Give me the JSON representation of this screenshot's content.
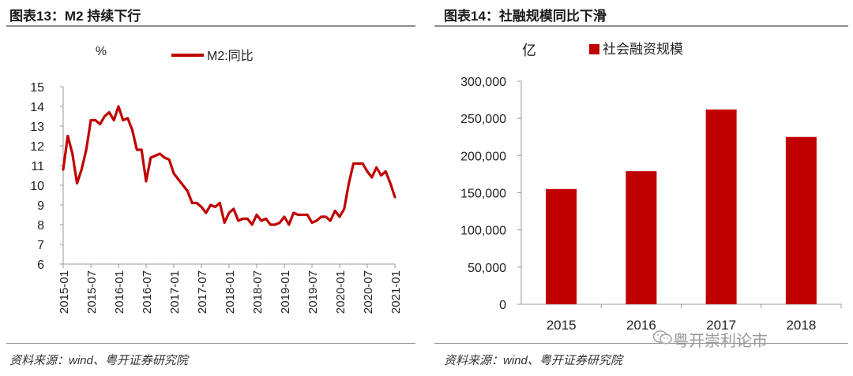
{
  "left": {
    "title": "图表13：M2 持续下行",
    "source": "资料来源：wind、粤开证券研究院"
  },
  "right": {
    "title": "图表14：社融规模同比下滑",
    "source": "资料来源：wind、粤开证券研究院"
  },
  "watermark": {
    "text": "粤开崇利论市",
    "icon": "wechat-icon"
  },
  "colors": {
    "series": "#c00000",
    "axis": "#999999",
    "rule": "#8c8c8c"
  },
  "chart_data": [
    {
      "type": "line",
      "ylabel": "%",
      "ylim": [
        6,
        15
      ],
      "yticks": [
        6,
        7,
        8,
        9,
        10,
        11,
        12,
        13,
        14,
        15
      ],
      "xlim": [
        "2015-01",
        "2021-01"
      ],
      "xticks": [
        "2015-01",
        "2015-07",
        "2016-01",
        "2016-07",
        "2017-01",
        "2017-07",
        "2018-01",
        "2018-07",
        "2019-01",
        "2019-07",
        "2020-01",
        "2020-07",
        "2021-01"
      ],
      "grid": false,
      "legend_position": "top",
      "series": [
        {
          "name": "M2:同比",
          "x": [
            "2015-01",
            "2015-02",
            "2015-03",
            "2015-04",
            "2015-05",
            "2015-06",
            "2015-07",
            "2015-08",
            "2015-09",
            "2015-10",
            "2015-11",
            "2015-12",
            "2016-01",
            "2016-02",
            "2016-03",
            "2016-04",
            "2016-05",
            "2016-06",
            "2016-07",
            "2016-08",
            "2016-09",
            "2016-10",
            "2016-11",
            "2016-12",
            "2017-01",
            "2017-02",
            "2017-03",
            "2017-04",
            "2017-05",
            "2017-06",
            "2017-07",
            "2017-08",
            "2017-09",
            "2017-10",
            "2017-11",
            "2017-12",
            "2018-01",
            "2018-02",
            "2018-03",
            "2018-04",
            "2018-05",
            "2018-06",
            "2018-07",
            "2018-08",
            "2018-09",
            "2018-10",
            "2018-11",
            "2018-12",
            "2019-01",
            "2019-02",
            "2019-03",
            "2019-04",
            "2019-05",
            "2019-06",
            "2019-07",
            "2019-08",
            "2019-09",
            "2019-10",
            "2019-11",
            "2019-12",
            "2020-01",
            "2020-02",
            "2020-03",
            "2020-04",
            "2020-05",
            "2020-06",
            "2020-07",
            "2020-08",
            "2020-09",
            "2020-10",
            "2020-11",
            "2020-12",
            "2021-01"
          ],
          "values": [
            10.8,
            12.5,
            11.6,
            10.1,
            10.8,
            11.8,
            13.3,
            13.3,
            13.1,
            13.5,
            13.7,
            13.3,
            14.0,
            13.3,
            13.4,
            12.8,
            11.8,
            11.8,
            10.2,
            11.4,
            11.5,
            11.6,
            11.4,
            11.3,
            10.6,
            10.3,
            10.0,
            9.7,
            9.1,
            9.1,
            8.9,
            8.6,
            9.0,
            8.9,
            9.1,
            8.1,
            8.6,
            8.8,
            8.2,
            8.3,
            8.3,
            8.0,
            8.5,
            8.2,
            8.3,
            8.0,
            8.0,
            8.1,
            8.4,
            8.0,
            8.6,
            8.5,
            8.5,
            8.5,
            8.1,
            8.2,
            8.4,
            8.4,
            8.2,
            8.7,
            8.4,
            8.8,
            10.1,
            11.1,
            11.1,
            11.1,
            10.7,
            10.4,
            10.9,
            10.5,
            10.7,
            10.1,
            9.4
          ]
        }
      ]
    },
    {
      "type": "bar",
      "ylabel": "亿",
      "ylim": [
        0,
        300000
      ],
      "yticks": [
        "0",
        "50,000",
        "100,000",
        "150,000",
        "200,000",
        "250,000",
        "300,000"
      ],
      "categories": [
        "2015",
        "2016",
        "2017",
        "2018"
      ],
      "grid": false,
      "legend_position": "top",
      "series": [
        {
          "name": "社会融资规模",
          "values": [
            155000,
            179000,
            262000,
            225000
          ]
        }
      ]
    }
  ]
}
